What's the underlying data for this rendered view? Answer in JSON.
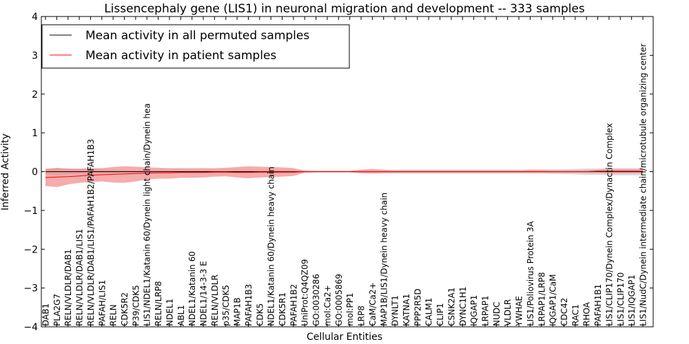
{
  "chart_data": {
    "type": "line",
    "title": "Lissencephaly gene (LIS1) in neuronal migration and development -- 333 samples",
    "xlabel": "Cellular Entities",
    "ylabel": "Inferred Activity",
    "ylim": [
      -4,
      4
    ],
    "yticks": [
      -4,
      -3,
      -2,
      -1,
      0,
      1,
      2,
      3,
      4
    ],
    "ytick_labels": [
      "−4",
      "−3",
      "−2",
      "−1",
      "0",
      "1",
      "2",
      "3",
      "4"
    ],
    "grid": false,
    "legend_position": "top-left",
    "categories": [
      "DAB1",
      "PLA2G7",
      "RELN/VLDLR/DAB1",
      "RELN/VLDLR/DAB1/LIS1",
      "RELN/VLDLR/DAB1/LIS1/PAFAH1B2/PAFAH1B3",
      "PAFAH/LIS1",
      "RELN",
      "CDK5R2",
      "P39/CDK5",
      "LIS1/NDEL1/Katanin 60/Dynein light chain/Dynein hea",
      "RELN/LRP8",
      "NDEL1",
      "ABL1",
      "NDEL1/Katanin 60",
      "NDEL1/14-3-3 E",
      "RELN/VLDLR",
      "p35/CDK5",
      "MAP1B",
      "PAFAH1B3",
      "CDK5",
      "NDEL1/Katanin 60/Dynein heavy chain",
      "CDK5R1",
      "PAFAH1B2",
      "UniProt:Q4QZ09",
      "GO:0030286",
      "mol:Ca2+",
      "GO:0005869",
      "mol:PP1",
      "LRP8",
      "CaM/Ca2+",
      "MAP1B/LIS1/Dynein heavy chain",
      "DYNLT1",
      "KATNA1",
      "PPP2R5D",
      "CALM1",
      "CLIP1",
      "CSNK2A1",
      "DYNC1H1",
      "IQGAP1",
      "LRPAP1",
      "NUDC",
      "VLDLR",
      "YWHAE",
      "LIS1/Poliovirus Protein 3A",
      "LRPAP1/LRP8",
      "IQGAP1/CaM",
      "CDC42",
      "RAC1",
      "RHOA",
      "PAFAH1B1",
      "LIS1/CLIP170/Dynein Complex/Dynactin Complex",
      "LIS1/CLIP170",
      "LIS1/IQGAP1",
      "LIS1/NudC/Dynein intermediate chain/microtubule organizing center"
    ],
    "series": [
      {
        "name": "Mean activity in all permuted samples",
        "color": "#000000",
        "band_color": "#bdbdbd",
        "values": [
          0,
          0,
          0,
          0,
          0,
          0,
          0,
          0,
          0,
          0,
          0,
          0,
          0,
          0,
          0,
          0,
          0,
          0,
          0,
          0,
          0,
          0,
          0,
          0,
          0,
          0,
          0,
          0,
          0,
          0,
          0,
          0,
          0,
          0,
          0,
          0,
          0,
          0,
          0,
          0,
          0,
          0,
          0,
          0,
          0,
          0,
          0,
          0,
          0,
          0,
          0,
          0,
          0,
          0
        ],
        "band_lower": [
          -0.08,
          -0.08,
          -0.07,
          -0.06,
          -0.06,
          -0.05,
          -0.05,
          -0.04,
          -0.04,
          -0.04,
          -0.04,
          -0.04,
          -0.04,
          -0.04,
          -0.04,
          -0.04,
          -0.04,
          -0.04,
          -0.04,
          -0.04,
          -0.04,
          -0.04,
          -0.04,
          -0.02,
          -0.02,
          -0.02,
          -0.02,
          -0.02,
          -0.04,
          -0.04,
          -0.04,
          -0.05,
          -0.05,
          -0.05,
          -0.05,
          -0.05,
          -0.05,
          -0.05,
          -0.05,
          -0.05,
          -0.05,
          -0.05,
          -0.05,
          -0.05,
          -0.05,
          -0.06,
          -0.06,
          -0.07,
          -0.08,
          -0.08,
          -0.09,
          -0.09,
          -0.09,
          -0.09
        ],
        "band_upper": [
          0.08,
          0.08,
          0.07,
          0.06,
          0.06,
          0.05,
          0.05,
          0.04,
          0.04,
          0.04,
          0.04,
          0.04,
          0.04,
          0.04,
          0.04,
          0.04,
          0.04,
          0.04,
          0.04,
          0.04,
          0.04,
          0.04,
          0.04,
          0.02,
          0.02,
          0.02,
          0.02,
          0.02,
          0.04,
          0.04,
          0.04,
          0.05,
          0.05,
          0.05,
          0.05,
          0.05,
          0.05,
          0.05,
          0.05,
          0.05,
          0.05,
          0.05,
          0.05,
          0.05,
          0.05,
          0.06,
          0.06,
          0.07,
          0.08,
          0.08,
          0.09,
          0.09,
          0.09,
          0.09
        ]
      },
      {
        "name": "Mean activity in patient samples",
        "color": "#ff0000",
        "band_color": "#f08080",
        "values": [
          -0.15,
          -0.14,
          -0.13,
          -0.11,
          -0.09,
          -0.08,
          -0.07,
          -0.06,
          -0.05,
          -0.04,
          -0.03,
          -0.03,
          -0.02,
          -0.02,
          -0.02,
          -0.01,
          -0.01,
          -0.02,
          -0.02,
          -0.01,
          -0.01,
          -0.01,
          -0.01,
          0,
          0,
          0,
          0,
          0,
          0,
          0,
          0,
          0,
          0,
          0,
          0,
          0,
          0,
          0,
          0,
          0,
          0,
          0,
          0,
          0,
          0,
          0,
          0,
          0,
          0,
          0.01,
          0.01,
          0.01,
          0.01,
          0.01
        ],
        "band_lower": [
          -0.37,
          -0.4,
          -0.33,
          -0.29,
          -0.27,
          -0.25,
          -0.28,
          -0.29,
          -0.25,
          -0.2,
          -0.18,
          -0.18,
          -0.16,
          -0.16,
          -0.15,
          -0.13,
          -0.12,
          -0.15,
          -0.17,
          -0.15,
          -0.14,
          -0.13,
          -0.11,
          -0.03,
          -0.02,
          -0.02,
          -0.02,
          -0.02,
          -0.04,
          -0.05,
          -0.04,
          -0.03,
          -0.03,
          -0.03,
          -0.03,
          -0.03,
          -0.03,
          -0.03,
          -0.03,
          -0.03,
          -0.03,
          -0.03,
          -0.03,
          -0.03,
          -0.03,
          -0.03,
          -0.03,
          -0.03,
          -0.03,
          -0.03,
          -0.04,
          -0.04,
          -0.04,
          -0.04
        ],
        "band_upper": [
          0.07,
          0.1,
          0.08,
          0.08,
          0.09,
          0.09,
          0.12,
          0.14,
          0.13,
          0.11,
          0.1,
          0.09,
          0.09,
          0.09,
          0.09,
          0.09,
          0.1,
          0.12,
          0.14,
          0.13,
          0.12,
          0.11,
          0.09,
          0.03,
          0.02,
          0.02,
          0.02,
          0.02,
          0.05,
          0.07,
          0.05,
          0.03,
          0.03,
          0.03,
          0.03,
          0.03,
          0.03,
          0.03,
          0.03,
          0.03,
          0.03,
          0.03,
          0.03,
          0.05,
          0.05,
          0.03,
          0.03,
          0.03,
          0.03,
          0.05,
          0.06,
          0.06,
          0.06,
          0.06
        ]
      }
    ]
  }
}
